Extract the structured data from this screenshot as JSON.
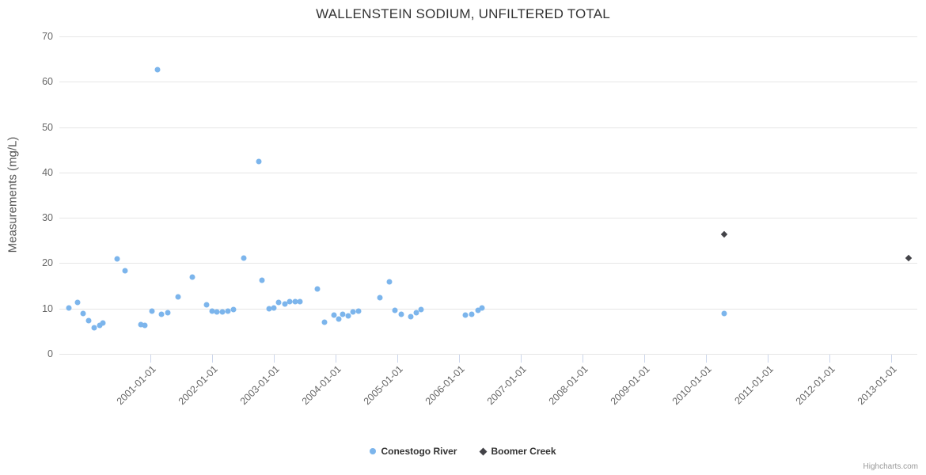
{
  "credit": "Highcharts.com",
  "chart_data": {
    "type": "scatter",
    "title": "WALLENSTEIN SODIUM, UNFILTERED TOTAL",
    "xlabel": "",
    "ylabel": "Measurements (mg/L)",
    "ylim": [
      0,
      70
    ],
    "yticks": [
      0,
      10,
      20,
      30,
      40,
      50,
      60,
      70
    ],
    "xlim": [
      1999.53,
      2013.42
    ],
    "xticks": [
      {
        "value": 2001,
        "label": "2001-01-01"
      },
      {
        "value": 2002,
        "label": "2002-01-01"
      },
      {
        "value": 2003,
        "label": "2003-01-01"
      },
      {
        "value": 2004,
        "label": "2004-01-01"
      },
      {
        "value": 2005,
        "label": "2005-01-01"
      },
      {
        "value": 2006,
        "label": "2006-01-01"
      },
      {
        "value": 2007,
        "label": "2007-01-01"
      },
      {
        "value": 2008,
        "label": "2008-01-01"
      },
      {
        "value": 2009,
        "label": "2009-01-01"
      },
      {
        "value": 2010,
        "label": "2010-01-01"
      },
      {
        "value": 2011,
        "label": "2011-01-01"
      },
      {
        "value": 2012,
        "label": "2012-01-01"
      },
      {
        "value": 2013,
        "label": "2013-01-01"
      }
    ],
    "grid": "horizontal",
    "legend_position": "bottom-center",
    "series": [
      {
        "name": "Conestogo River",
        "color": "#7cb5ec",
        "marker": "circle",
        "points": [
          [
            1999.69,
            10.2
          ],
          [
            1999.83,
            11.3
          ],
          [
            1999.92,
            8.9
          ],
          [
            2000.0,
            7.4
          ],
          [
            2000.09,
            5.7
          ],
          [
            2000.18,
            6.2
          ],
          [
            2000.24,
            6.8
          ],
          [
            2000.46,
            20.9
          ],
          [
            2000.59,
            18.3
          ],
          [
            2000.85,
            6.4
          ],
          [
            2000.92,
            6.3
          ],
          [
            2001.03,
            9.5
          ],
          [
            2001.12,
            62.7
          ],
          [
            2001.18,
            8.8
          ],
          [
            2001.29,
            9.0
          ],
          [
            2001.45,
            12.5
          ],
          [
            2001.68,
            17.0
          ],
          [
            2001.91,
            10.8
          ],
          [
            2002.0,
            9.4
          ],
          [
            2002.08,
            9.2
          ],
          [
            2002.17,
            9.2
          ],
          [
            2002.26,
            9.5
          ],
          [
            2002.35,
            9.7
          ],
          [
            2002.51,
            21.2
          ],
          [
            2002.76,
            42.4
          ],
          [
            2002.81,
            16.2
          ],
          [
            2002.92,
            10.0
          ],
          [
            2003.0,
            10.2
          ],
          [
            2003.08,
            11.3
          ],
          [
            2003.18,
            11.0
          ],
          [
            2003.26,
            11.6
          ],
          [
            2003.35,
            11.5
          ],
          [
            2003.42,
            11.6
          ],
          [
            2003.71,
            14.3
          ],
          [
            2003.82,
            6.9
          ],
          [
            2003.97,
            8.5
          ],
          [
            2004.05,
            7.6
          ],
          [
            2004.12,
            8.7
          ],
          [
            2004.21,
            8.3
          ],
          [
            2004.29,
            9.2
          ],
          [
            2004.37,
            9.4
          ],
          [
            2004.72,
            12.4
          ],
          [
            2004.87,
            15.9
          ],
          [
            2004.96,
            9.6
          ],
          [
            2005.06,
            8.7
          ],
          [
            2005.22,
            8.2
          ],
          [
            2005.31,
            9.0
          ],
          [
            2005.39,
            9.8
          ],
          [
            2006.1,
            8.5
          ],
          [
            2006.21,
            8.7
          ],
          [
            2006.31,
            9.6
          ],
          [
            2006.37,
            10.2
          ],
          [
            2010.29,
            8.9
          ]
        ]
      },
      {
        "name": "Boomer Creek",
        "color": "#434348",
        "marker": "diamond",
        "points": [
          [
            2010.29,
            26.3
          ],
          [
            2013.28,
            21.2
          ]
        ]
      }
    ]
  }
}
